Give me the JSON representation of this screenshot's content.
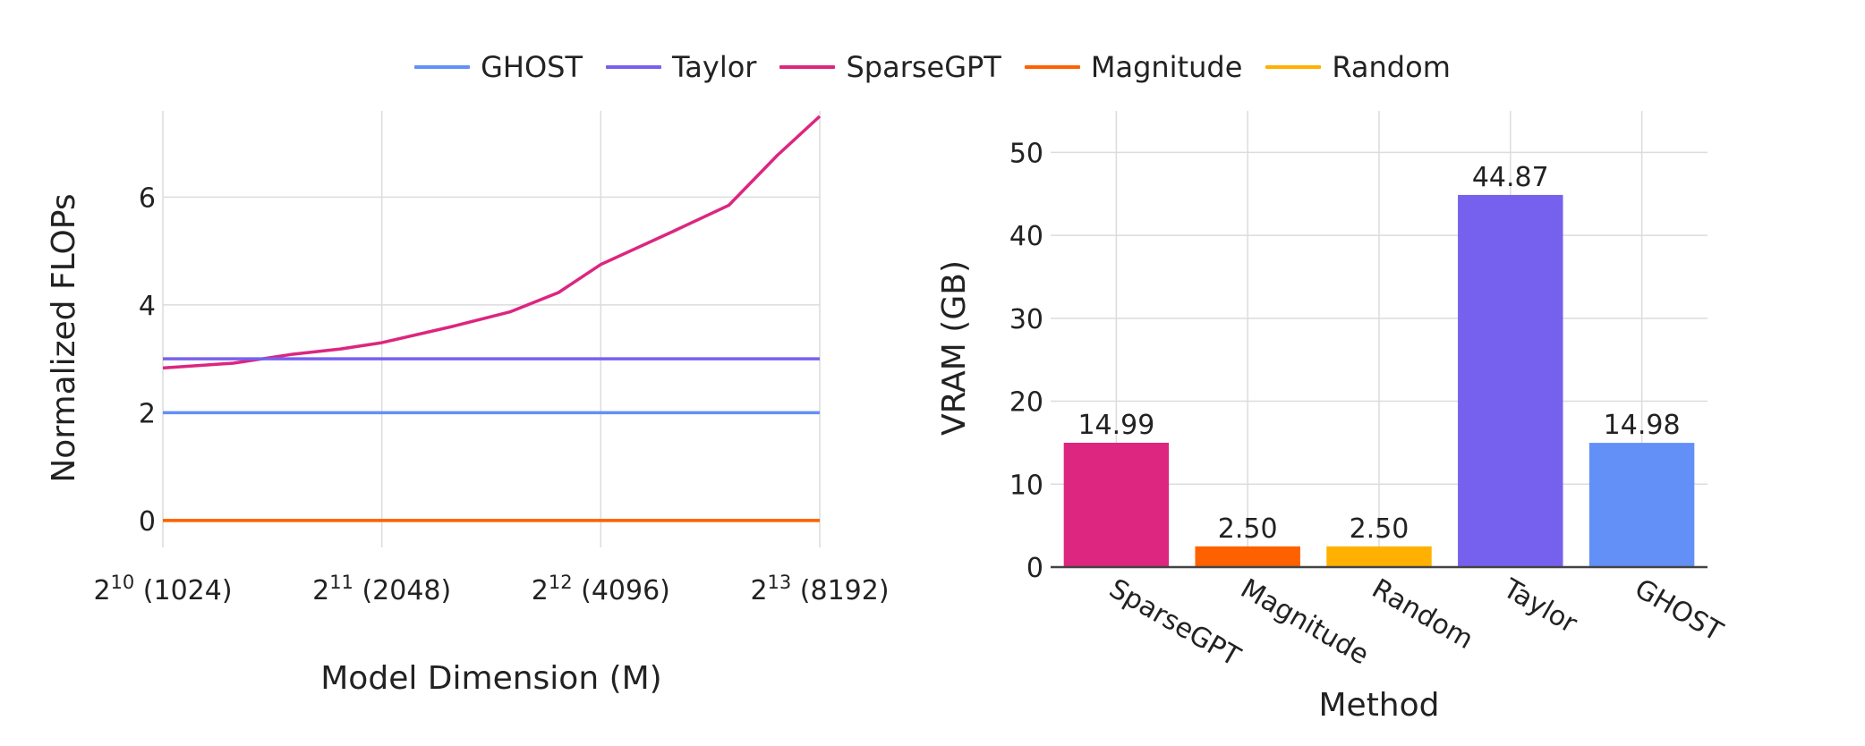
{
  "legend": [
    {
      "label": "GHOST",
      "color": "#6390f7"
    },
    {
      "label": "Taylor",
      "color": "#7661ee"
    },
    {
      "label": "SparseGPT",
      "color": "#dc267f"
    },
    {
      "label": "Magnitude",
      "color": "#fe6100"
    },
    {
      "label": "Random",
      "color": "#ffb000"
    }
  ],
  "chart_data": [
    {
      "type": "line",
      "xlabel": "Model Dimension (M)",
      "ylabel": "Normalized FLOPs",
      "x_scale": "log2",
      "x_ticks": [
        {
          "value": 1024,
          "base": "2",
          "exp": "10",
          "rest": " (1024)"
        },
        {
          "value": 2048,
          "base": "2",
          "exp": "11",
          "rest": " (2048)"
        },
        {
          "value": 4096,
          "base": "2",
          "exp": "12",
          "rest": " (4096)"
        },
        {
          "value": 8192,
          "base": "2",
          "exp": "13",
          "rest": " (8192)"
        }
      ],
      "y_ticks": [
        "0",
        "2",
        "4",
        "6"
      ],
      "xlim": [
        1024,
        8192
      ],
      "ylim": [
        -0.5,
        7.6
      ],
      "grid": true,
      "x": [
        1024,
        1280,
        1536,
        1792,
        2048,
        2560,
        3072,
        3584,
        4096,
        5120,
        6144,
        7168,
        8192
      ],
      "series": [
        {
          "name": "GHOST",
          "color": "#6390f7",
          "values": [
            2,
            2,
            2,
            2,
            2,
            2,
            2,
            2,
            2,
            2,
            2,
            2,
            2
          ]
        },
        {
          "name": "Taylor",
          "color": "#7661ee",
          "values": [
            3,
            3,
            3,
            3,
            3,
            3,
            3,
            3,
            3,
            3,
            3,
            3,
            3
          ]
        },
        {
          "name": "SparseGPT",
          "color": "#dc267f",
          "values": [
            2.83,
            2.92,
            3.08,
            3.18,
            3.3,
            3.6,
            3.87,
            4.23,
            4.75,
            5.35,
            5.85,
            6.78,
            7.5
          ]
        },
        {
          "name": "Magnitude",
          "color": "#fe6100",
          "values": [
            0,
            0,
            0,
            0,
            0,
            0,
            0,
            0,
            0,
            0,
            0,
            0,
            0
          ]
        },
        {
          "name": "Random",
          "color": "#ffb000",
          "values": [
            0,
            0,
            0,
            0,
            0,
            0,
            0,
            0,
            0,
            0,
            0,
            0,
            0
          ]
        }
      ]
    },
    {
      "type": "bar",
      "xlabel": "Method",
      "ylabel": "VRAM (GB)",
      "categories": [
        "SparseGPT",
        "Magnitude",
        "Random",
        "Taylor",
        "GHOST"
      ],
      "values": [
        14.99,
        2.5,
        2.5,
        44.87,
        14.98
      ],
      "value_labels": [
        "14.99",
        "2.50",
        "2.50",
        "44.87",
        "14.98"
      ],
      "colors": [
        "#dc267f",
        "#fe6100",
        "#ffb000",
        "#7661ee",
        "#6390f7"
      ],
      "y_ticks": [
        0,
        10,
        20,
        30,
        40,
        50
      ],
      "ylim": [
        0,
        55
      ],
      "grid": true
    }
  ]
}
